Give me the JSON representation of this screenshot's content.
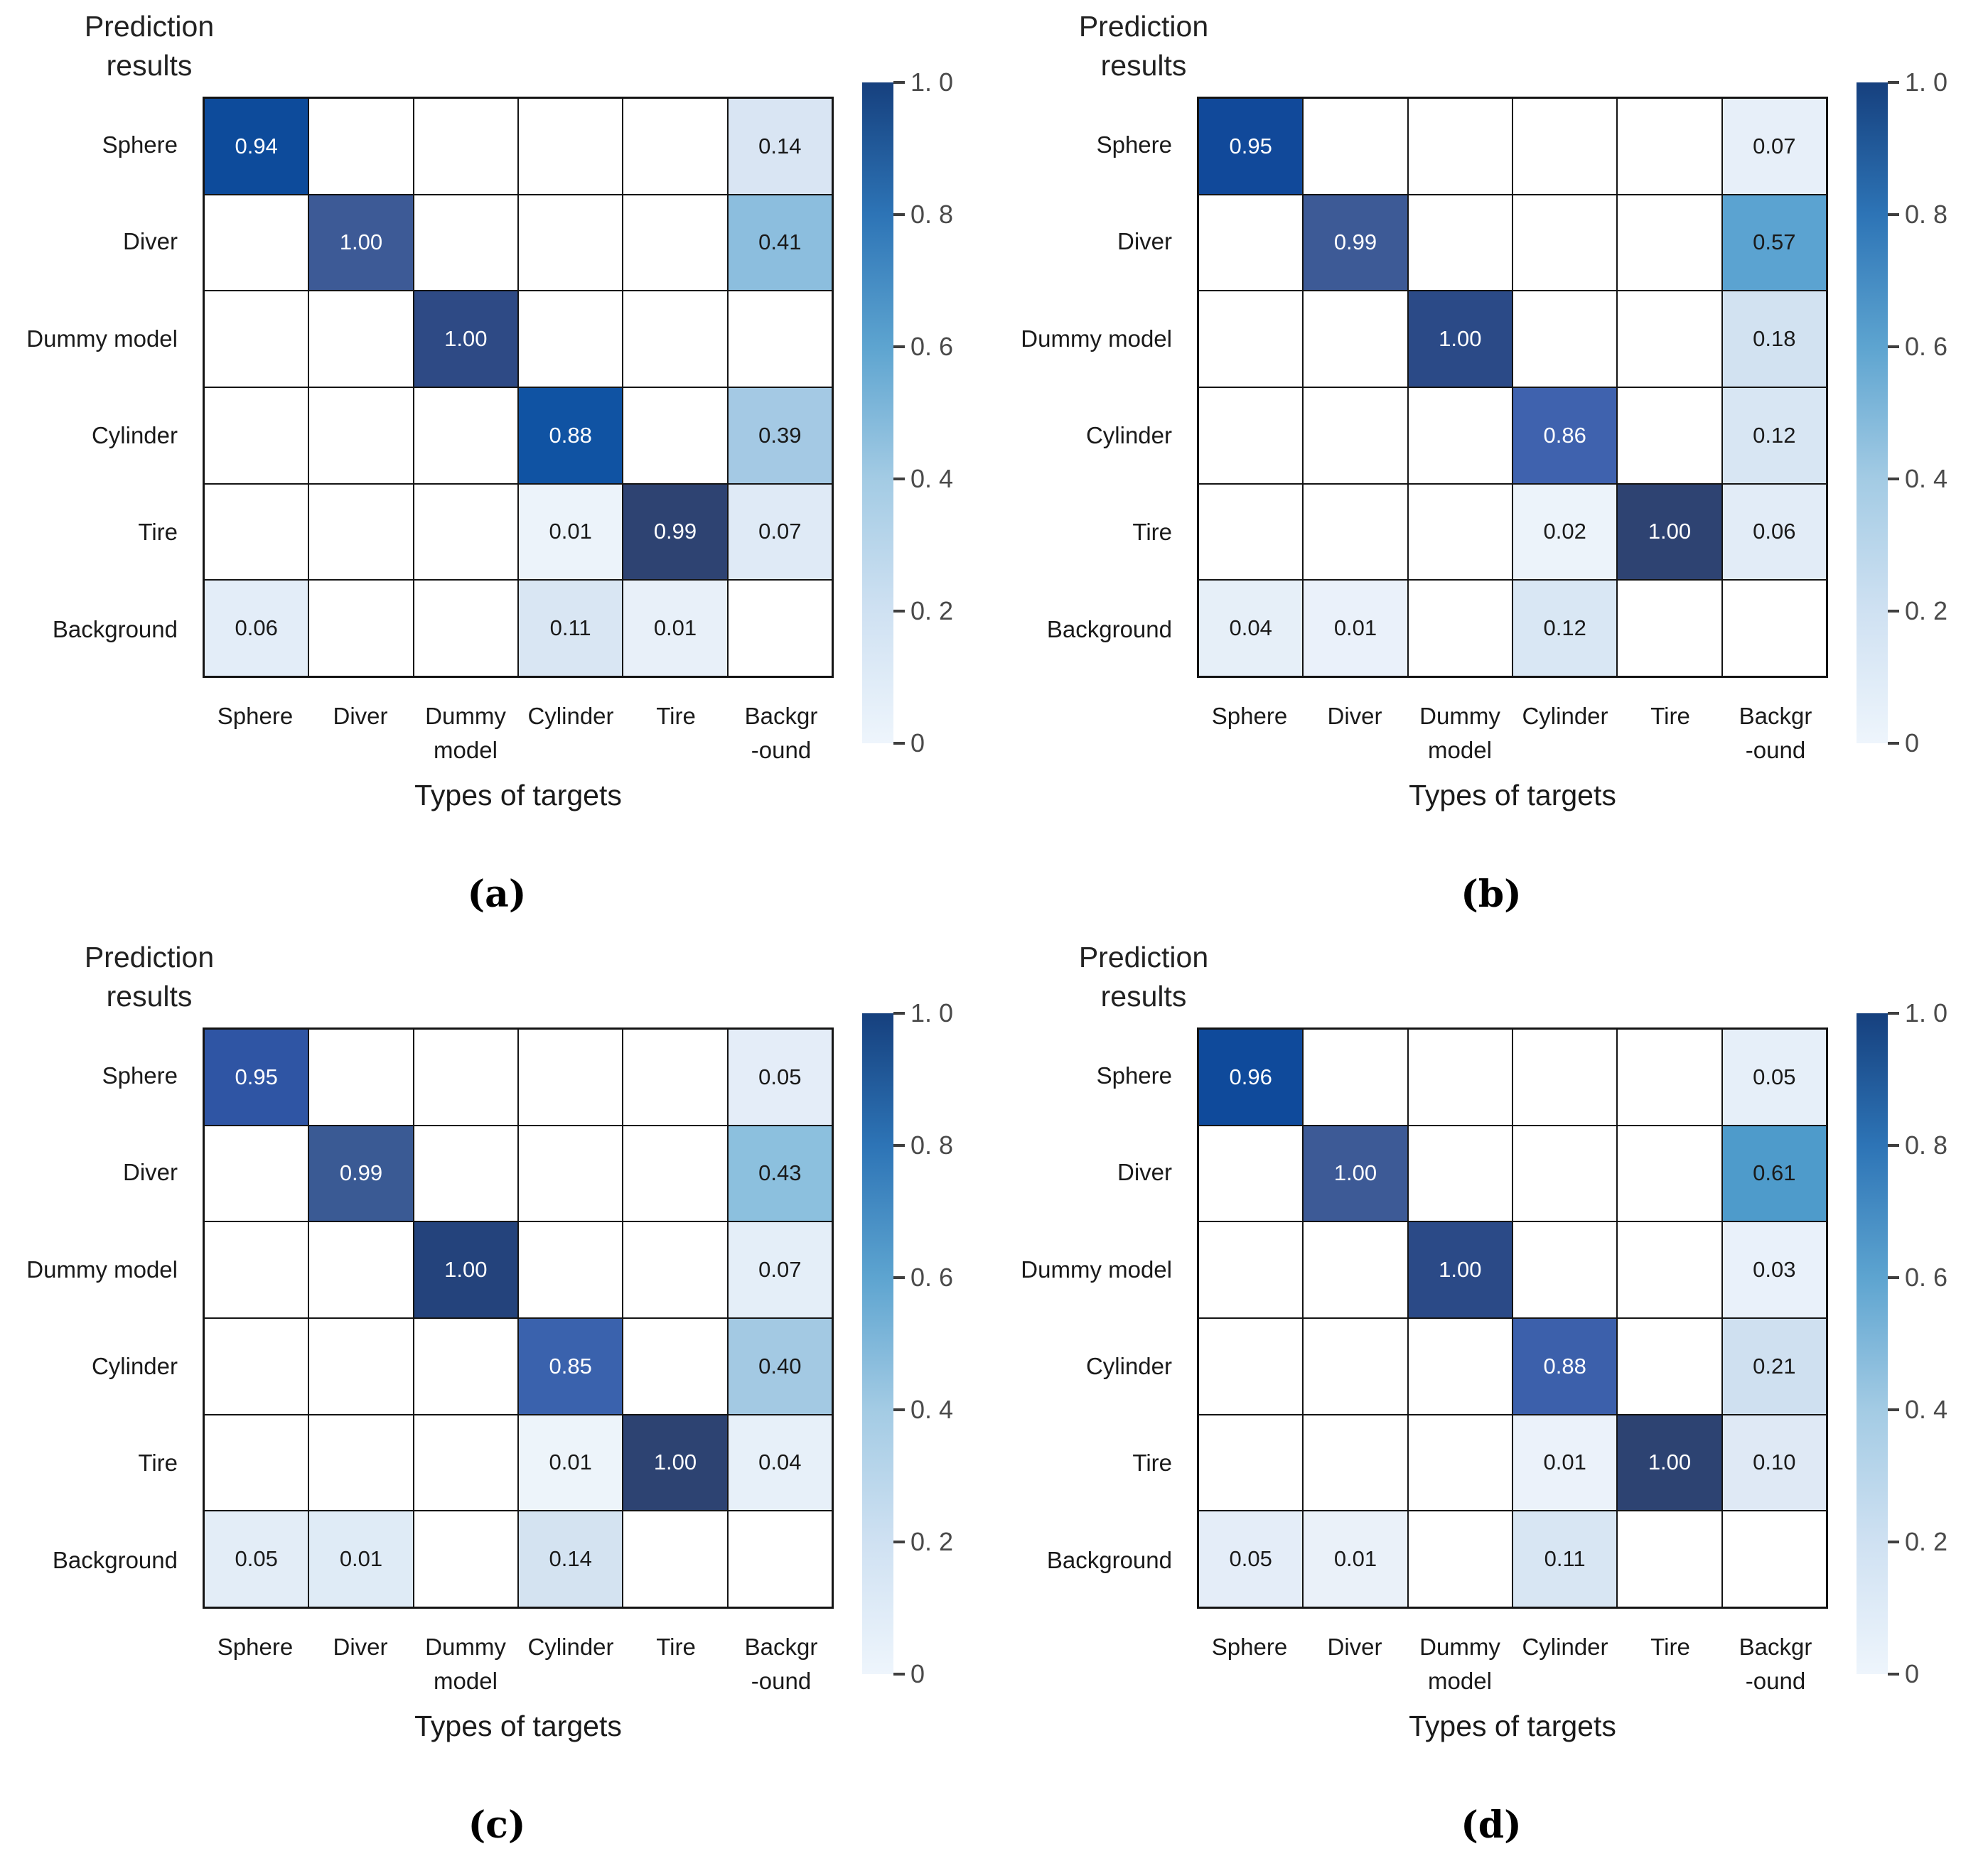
{
  "figure": {
    "y_axis_title_lines": [
      "Prediction",
      "results"
    ],
    "x_axis_title": "Types of targets",
    "row_labels": [
      "Sphere",
      "Diver",
      "Dummy model",
      "Cylinder",
      "Tire",
      "Background"
    ],
    "col_label_lines": [
      [
        "Sphere"
      ],
      [
        "Diver"
      ],
      [
        "Dummy",
        "model"
      ],
      [
        "Cylinder"
      ],
      [
        "Tire"
      ],
      [
        "Backgr",
        "-ound"
      ]
    ],
    "colorbar": {
      "tick_labels": [
        "1. 0",
        "0. 8",
        "0. 6",
        "0. 4",
        "0. 2",
        "0"
      ],
      "range": [
        0,
        1
      ],
      "top_color": "#16407e",
      "bottom_color": "#eef5fc"
    },
    "grid_color": "#141414",
    "default_cell_color": "#ffffff",
    "dark_text": "#1a1a1a",
    "light_text": "#ffffff"
  },
  "chart_data": [
    {
      "type": "heatmap",
      "panel": "a",
      "caption": "(a)",
      "xlabel": "Types of targets",
      "ylabel": "Prediction results",
      "x_categories": [
        "Sphere",
        "Diver",
        "Dummy model",
        "Cylinder",
        "Tire",
        "Background"
      ],
      "y_categories": [
        "Sphere",
        "Diver",
        "Dummy model",
        "Cylinder",
        "Tire",
        "Background"
      ],
      "value_range": [
        0,
        1
      ],
      "cells": [
        {
          "r": 0,
          "c": 0,
          "value": 0.94,
          "label": "0.94",
          "bg": "#0d4b9b",
          "fg": "#ffffff"
        },
        {
          "r": 0,
          "c": 5,
          "value": 0.14,
          "label": "0.14",
          "bg": "#d9e5f3",
          "fg": "#1a1a1a"
        },
        {
          "r": 1,
          "c": 1,
          "value": 1.0,
          "label": "1.00",
          "bg": "#3d5a96",
          "fg": "#ffffff"
        },
        {
          "r": 1,
          "c": 5,
          "value": 0.41,
          "label": "0.41",
          "bg": "#8cbede",
          "fg": "#1a1a1a"
        },
        {
          "r": 2,
          "c": 2,
          "value": 1.0,
          "label": "1.00",
          "bg": "#2e4a85",
          "fg": "#ffffff"
        },
        {
          "r": 3,
          "c": 3,
          "value": 0.88,
          "label": "0.88",
          "bg": "#1053a3",
          "fg": "#ffffff"
        },
        {
          "r": 3,
          "c": 5,
          "value": 0.39,
          "label": "0.39",
          "bg": "#a4c9e4",
          "fg": "#1a1a1a"
        },
        {
          "r": 4,
          "c": 3,
          "value": 0.01,
          "label": "0.01",
          "bg": "#ecf3fa",
          "fg": "#1a1a1a"
        },
        {
          "r": 4,
          "c": 4,
          "value": 0.99,
          "label": "0.99",
          "bg": "#2e4372",
          "fg": "#ffffff"
        },
        {
          "r": 4,
          "c": 5,
          "value": 0.07,
          "label": "0.07",
          "bg": "#dfeaf6",
          "fg": "#1a1a1a"
        },
        {
          "r": 5,
          "c": 0,
          "value": 0.06,
          "label": "0.06",
          "bg": "#e3edf8",
          "fg": "#1a1a1a"
        },
        {
          "r": 5,
          "c": 3,
          "value": 0.11,
          "label": "0.11",
          "bg": "#d9e6f3",
          "fg": "#1a1a1a"
        },
        {
          "r": 5,
          "c": 4,
          "value": 0.01,
          "label": "0.01",
          "bg": "#e8f0f9",
          "fg": "#1a1a1a"
        }
      ]
    },
    {
      "type": "heatmap",
      "panel": "b",
      "caption": "(b)",
      "xlabel": "Types of targets",
      "ylabel": "Prediction results",
      "x_categories": [
        "Sphere",
        "Diver",
        "Dummy model",
        "Cylinder",
        "Tire",
        "Background"
      ],
      "y_categories": [
        "Sphere",
        "Diver",
        "Dummy model",
        "Cylinder",
        "Tire",
        "Background"
      ],
      "value_range": [
        0,
        1
      ],
      "cells": [
        {
          "r": 0,
          "c": 0,
          "value": 0.95,
          "label": "0.95",
          "bg": "#11499a",
          "fg": "#ffffff"
        },
        {
          "r": 0,
          "c": 5,
          "value": 0.07,
          "label": "0.07",
          "bg": "#e7eff9",
          "fg": "#1a1a1a"
        },
        {
          "r": 1,
          "c": 1,
          "value": 0.99,
          "label": "0.99",
          "bg": "#3d5a96",
          "fg": "#ffffff"
        },
        {
          "r": 1,
          "c": 5,
          "value": 0.57,
          "label": "0.57",
          "bg": "#5ba3d1",
          "fg": "#1a1a1a"
        },
        {
          "r": 2,
          "c": 2,
          "value": 1.0,
          "label": "1.00",
          "bg": "#2b4a87",
          "fg": "#ffffff"
        },
        {
          "r": 2,
          "c": 5,
          "value": 0.18,
          "label": "0.18",
          "bg": "#d2e2f1",
          "fg": "#1a1a1a"
        },
        {
          "r": 3,
          "c": 3,
          "value": 0.86,
          "label": "0.86",
          "bg": "#3f62ae",
          "fg": "#ffffff"
        },
        {
          "r": 3,
          "c": 5,
          "value": 0.12,
          "label": "0.12",
          "bg": "#d8e6f3",
          "fg": "#1a1a1a"
        },
        {
          "r": 4,
          "c": 3,
          "value": 0.02,
          "label": "0.02",
          "bg": "#ecf3fa",
          "fg": "#1a1a1a"
        },
        {
          "r": 4,
          "c": 4,
          "value": 1.0,
          "label": "1.00",
          "bg": "#2e4372",
          "fg": "#ffffff"
        },
        {
          "r": 4,
          "c": 5,
          "value": 0.06,
          "label": "0.06",
          "bg": "#e2ecf7",
          "fg": "#1a1a1a"
        },
        {
          "r": 5,
          "c": 0,
          "value": 0.04,
          "label": "0.04",
          "bg": "#e6eff8",
          "fg": "#1a1a1a"
        },
        {
          "r": 5,
          "c": 1,
          "value": 0.01,
          "label": "0.01",
          "bg": "#eaf1fa",
          "fg": "#1a1a1a"
        },
        {
          "r": 5,
          "c": 3,
          "value": 0.12,
          "label": "0.12",
          "bg": "#d9e7f4",
          "fg": "#1a1a1a"
        }
      ]
    },
    {
      "type": "heatmap",
      "panel": "c",
      "caption": "(c)",
      "xlabel": "Types of targets",
      "ylabel": "Prediction results",
      "x_categories": [
        "Sphere",
        "Diver",
        "Dummy model",
        "Cylinder",
        "Tire",
        "Background"
      ],
      "y_categories": [
        "Sphere",
        "Diver",
        "Dummy model",
        "Cylinder",
        "Tire",
        "Background"
      ],
      "value_range": [
        0,
        1
      ],
      "cells": [
        {
          "r": 0,
          "c": 0,
          "value": 0.95,
          "label": "0.95",
          "bg": "#2f55a4",
          "fg": "#ffffff"
        },
        {
          "r": 0,
          "c": 5,
          "value": 0.05,
          "label": "0.05",
          "bg": "#e4edf8",
          "fg": "#1a1a1a"
        },
        {
          "r": 1,
          "c": 1,
          "value": 0.99,
          "label": "0.99",
          "bg": "#3a5a94",
          "fg": "#ffffff"
        },
        {
          "r": 1,
          "c": 5,
          "value": 0.43,
          "label": "0.43",
          "bg": "#8cc0de",
          "fg": "#1a1a1a"
        },
        {
          "r": 2,
          "c": 2,
          "value": 1.0,
          "label": "1.00",
          "bg": "#24437c",
          "fg": "#ffffff"
        },
        {
          "r": 2,
          "c": 5,
          "value": 0.07,
          "label": "0.07",
          "bg": "#e4eef8",
          "fg": "#1a1a1a"
        },
        {
          "r": 3,
          "c": 3,
          "value": 0.85,
          "label": "0.85",
          "bg": "#3a62ad",
          "fg": "#ffffff"
        },
        {
          "r": 3,
          "c": 5,
          "value": 0.4,
          "label": "0.40",
          "bg": "#a3c9e3",
          "fg": "#1a1a1a"
        },
        {
          "r": 4,
          "c": 3,
          "value": 0.01,
          "label": "0.01",
          "bg": "#edf4fa",
          "fg": "#1a1a1a"
        },
        {
          "r": 4,
          "c": 4,
          "value": 1.0,
          "label": "1.00",
          "bg": "#2d4372",
          "fg": "#ffffff"
        },
        {
          "r": 4,
          "c": 5,
          "value": 0.04,
          "label": "0.04",
          "bg": "#e7f0f9",
          "fg": "#1a1a1a"
        },
        {
          "r": 5,
          "c": 0,
          "value": 0.05,
          "label": "0.05",
          "bg": "#e3edf7",
          "fg": "#1a1a1a"
        },
        {
          "r": 5,
          "c": 1,
          "value": 0.01,
          "label": "0.01",
          "bg": "#dfebf6",
          "fg": "#1a1a1a"
        },
        {
          "r": 5,
          "c": 3,
          "value": 0.14,
          "label": "0.14",
          "bg": "#d4e3f1",
          "fg": "#1a1a1a"
        }
      ]
    },
    {
      "type": "heatmap",
      "panel": "d",
      "caption": "(d)",
      "xlabel": "Types of targets",
      "ylabel": "Prediction results",
      "x_categories": [
        "Sphere",
        "Diver",
        "Dummy model",
        "Cylinder",
        "Tire",
        "Background"
      ],
      "y_categories": [
        "Sphere",
        "Diver",
        "Dummy model",
        "Cylinder",
        "Tire",
        "Background"
      ],
      "value_range": [
        0,
        1
      ],
      "cells": [
        {
          "r": 0,
          "c": 0,
          "value": 0.96,
          "label": "0.96",
          "bg": "#0f4a9b",
          "fg": "#ffffff"
        },
        {
          "r": 0,
          "c": 5,
          "value": 0.05,
          "label": "0.05",
          "bg": "#e6eff9",
          "fg": "#1a1a1a"
        },
        {
          "r": 1,
          "c": 1,
          "value": 1.0,
          "label": "1.00",
          "bg": "#3d5a96",
          "fg": "#ffffff"
        },
        {
          "r": 1,
          "c": 5,
          "value": 0.61,
          "label": "0.61",
          "bg": "#4e9bcb",
          "fg": "#1a1a1a"
        },
        {
          "r": 2,
          "c": 2,
          "value": 1.0,
          "label": "1.00",
          "bg": "#2b4a87",
          "fg": "#ffffff"
        },
        {
          "r": 2,
          "c": 5,
          "value": 0.03,
          "label": "0.03",
          "bg": "#e9f1fa",
          "fg": "#1a1a1a"
        },
        {
          "r": 3,
          "c": 3,
          "value": 0.88,
          "label": "0.88",
          "bg": "#3c60ab",
          "fg": "#ffffff"
        },
        {
          "r": 3,
          "c": 5,
          "value": 0.21,
          "label": "0.21",
          "bg": "#cfe0f0",
          "fg": "#1a1a1a"
        },
        {
          "r": 4,
          "c": 3,
          "value": 0.01,
          "label": "0.01",
          "bg": "#ebf2fa",
          "fg": "#1a1a1a"
        },
        {
          "r": 4,
          "c": 4,
          "value": 1.0,
          "label": "1.00",
          "bg": "#2d4372",
          "fg": "#ffffff"
        },
        {
          "r": 4,
          "c": 5,
          "value": 0.1,
          "label": "0.10",
          "bg": "#dfe9f5",
          "fg": "#1a1a1a"
        },
        {
          "r": 5,
          "c": 0,
          "value": 0.05,
          "label": "0.05",
          "bg": "#e4edf8",
          "fg": "#1a1a1a"
        },
        {
          "r": 5,
          "c": 1,
          "value": 0.01,
          "label": "0.01",
          "bg": "#eaf1f9",
          "fg": "#1a1a1a"
        },
        {
          "r": 5,
          "c": 3,
          "value": 0.11,
          "label": "0.11",
          "bg": "#d8e6f3",
          "fg": "#1a1a1a"
        }
      ]
    }
  ]
}
